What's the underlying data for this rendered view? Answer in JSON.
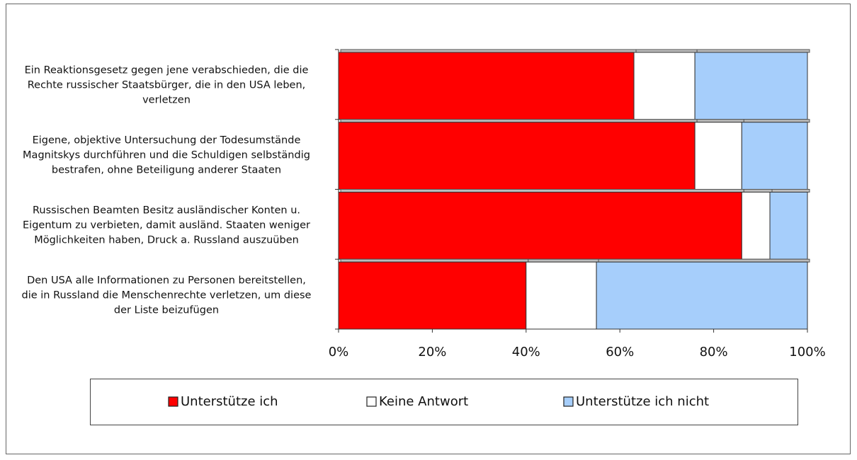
{
  "chart_data": {
    "type": "stacked-barh",
    "categories": [
      "Ein Reaktionsgesetz gegen jene verabschieden, die die\nRechte russischer Staatsbürger, die in den USA leben,\nverletzen",
      "Eigene, objektive Untersuchung der Todesumstände\nMagnitskys durchführen und die Schuldigen selbständig\nbestrafen, ohne Beteiligung anderer Staaten",
      "Russischen Beamten  Besitz ausländischer Konten u.\nEigentum zu verbieten, damit ausländ. Staaten weniger\nMöglichkeiten haben, Druck a. Russland auszuüben",
      "Den USA alle Informationen zu Personen bereitstellen,\ndie in Russland die Menschenrechte verletzen, um diese\nder Liste beizufügen"
    ],
    "series": [
      {
        "name": "Unterstütze ich",
        "color": "#ff0000",
        "values": [
          63,
          76,
          86,
          40
        ]
      },
      {
        "name": "Keine Antwort",
        "color": "#ffffff",
        "values": [
          13,
          10,
          6,
          15
        ]
      },
      {
        "name": "Unterstütze ich nicht",
        "color": "#a6cefb",
        "values": [
          24,
          14,
          8,
          45
        ]
      }
    ],
    "xlim": [
      0,
      100
    ],
    "xticks": [
      {
        "value": 0,
        "label": "0%"
      },
      {
        "value": 20,
        "label": "20%"
      },
      {
        "value": 40,
        "label": "40%"
      },
      {
        "value": 60,
        "label": "60%"
      },
      {
        "value": 80,
        "label": "80%"
      },
      {
        "value": 100,
        "label": "100%"
      }
    ],
    "legend": "bottom"
  }
}
